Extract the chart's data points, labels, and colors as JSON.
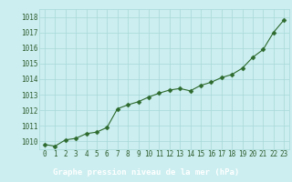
{
  "x": [
    0,
    1,
    2,
    3,
    4,
    5,
    6,
    7,
    8,
    9,
    10,
    11,
    12,
    13,
    14,
    15,
    16,
    17,
    18,
    19,
    20,
    21,
    22,
    23
  ],
  "y": [
    1009.8,
    1009.7,
    1010.1,
    1010.2,
    1010.5,
    1010.6,
    1010.9,
    1012.1,
    1012.35,
    1012.55,
    1012.85,
    1013.1,
    1013.3,
    1013.4,
    1013.25,
    1013.6,
    1013.8,
    1014.1,
    1014.3,
    1014.7,
    1015.4,
    1015.9,
    1017.0,
    1017.8
  ],
  "ylim_min": 1009.5,
  "ylim_max": 1018.5,
  "yticks": [
    1010,
    1011,
    1012,
    1013,
    1014,
    1015,
    1016,
    1017,
    1018
  ],
  "xticks": [
    0,
    1,
    2,
    3,
    4,
    5,
    6,
    7,
    8,
    9,
    10,
    11,
    12,
    13,
    14,
    15,
    16,
    17,
    18,
    19,
    20,
    21,
    22,
    23
  ],
  "xlabel": "Graphe pression niveau de la mer (hPa)",
  "line_color": "#2d6a2d",
  "marker_color": "#2d6a2d",
  "bg_color": "#cceef0",
  "grid_color": "#a8d8d8",
  "tick_label_color": "#2d5c2d",
  "xlabel_bg": "#2d6a2d",
  "xlabel_fg": "#ffffff",
  "xlabel_fontsize": 6.5,
  "tick_fontsize": 5.5,
  "marker_size": 2.5,
  "line_width": 0.8
}
